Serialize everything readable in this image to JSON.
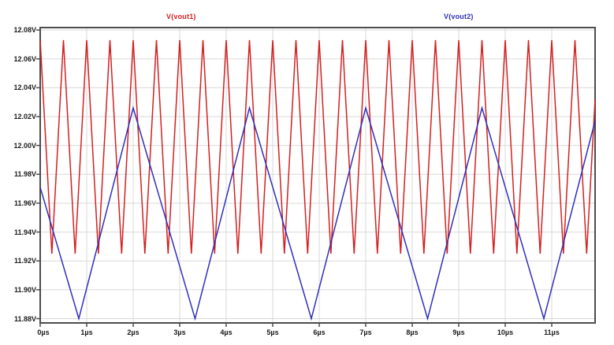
{
  "page": {
    "background": "#ffffff",
    "plot_border_color": "#4d4d4d",
    "grid_color": "#d9d9d9"
  },
  "legend": {
    "items": [
      {
        "label": "V(vout1)",
        "color": "#d42020"
      },
      {
        "label": "V(vout2)",
        "color": "#3030bb"
      }
    ]
  },
  "chart_data": {
    "type": "line",
    "title": "",
    "xlabel": "",
    "ylabel": "",
    "x_unit": "µs",
    "y_unit": "V",
    "grid": true,
    "legend_position": "top",
    "xlim": [
      0,
      11.932
    ],
    "ylim": [
      11.877,
      12.0817
    ],
    "x_ticks": {
      "values": [
        0,
        1,
        2,
        3,
        4,
        5,
        6,
        7,
        8,
        9,
        10,
        11
      ],
      "labels": [
        "0µs",
        "1µs",
        "2µs",
        "3µs",
        "4µs",
        "5µs",
        "6µs",
        "7µs",
        "8µs",
        "9µs",
        "10µs",
        "11µs"
      ]
    },
    "y_ticks": {
      "values": [
        12.08,
        12.06,
        12.04,
        12.02,
        12.0,
        11.98,
        11.96,
        11.94,
        11.92,
        11.9,
        11.88
      ],
      "labels": [
        "12.08V",
        "12.06V",
        "12.04V",
        "12.02V",
        "12.00V",
        "11.98V",
        "11.96V",
        "11.94V",
        "11.92V",
        "11.90V",
        "11.88V"
      ]
    },
    "series": [
      {
        "name": "V(vout1)",
        "color": "#d42020",
        "shape": "triangle wave, period 0.5µs, min 11.925V, max 12.073V, peaks at t = 0.5k µs",
        "points": [
          [
            0,
            12.073
          ],
          [
            0.25,
            11.925
          ],
          [
            0.5,
            12.073
          ],
          [
            0.75,
            11.925
          ],
          [
            1,
            12.073
          ],
          [
            1.25,
            11.925
          ],
          [
            1.5,
            12.073
          ],
          [
            1.75,
            11.925
          ],
          [
            2,
            12.073
          ],
          [
            2.25,
            11.925
          ],
          [
            2.5,
            12.073
          ],
          [
            2.75,
            11.925
          ],
          [
            3,
            12.073
          ],
          [
            3.25,
            11.925
          ],
          [
            3.5,
            12.073
          ],
          [
            3.75,
            11.925
          ],
          [
            4,
            12.073
          ],
          [
            4.25,
            11.925
          ],
          [
            4.5,
            12.073
          ],
          [
            4.75,
            11.925
          ],
          [
            5,
            12.073
          ],
          [
            5.25,
            11.925
          ],
          [
            5.5,
            12.073
          ],
          [
            5.75,
            11.925
          ],
          [
            6,
            12.073
          ],
          [
            6.25,
            11.925
          ],
          [
            6.5,
            12.073
          ],
          [
            6.75,
            11.925
          ],
          [
            7,
            12.073
          ],
          [
            7.25,
            11.925
          ],
          [
            7.5,
            12.073
          ],
          [
            7.75,
            11.925
          ],
          [
            8,
            12.073
          ],
          [
            8.25,
            11.925
          ],
          [
            8.5,
            12.073
          ],
          [
            8.75,
            11.925
          ],
          [
            9,
            12.073
          ],
          [
            9.25,
            11.925
          ],
          [
            9.5,
            12.073
          ],
          [
            9.75,
            11.925
          ],
          [
            10,
            12.073
          ],
          [
            10.25,
            11.925
          ],
          [
            10.5,
            12.073
          ],
          [
            10.75,
            11.925
          ],
          [
            11,
            12.073
          ],
          [
            11.25,
            11.925
          ],
          [
            11.5,
            12.073
          ],
          [
            11.75,
            11.925
          ],
          [
            11.932,
            12.032
          ]
        ]
      },
      {
        "name": "V(vout2)",
        "color": "#3030bb",
        "shape": "triangle wave, period 2.5µs, min 11.88V at t = 0.83+2.5k µs, max 12.026V at t = 2.0+2.5k µs",
        "points": [
          [
            0,
            11.971
          ],
          [
            0.83,
            11.88
          ],
          [
            2.0,
            12.026
          ],
          [
            3.33,
            11.88
          ],
          [
            4.5,
            12.026
          ],
          [
            5.83,
            11.88
          ],
          [
            7.0,
            12.026
          ],
          [
            8.33,
            11.88
          ],
          [
            9.5,
            12.026
          ],
          [
            10.83,
            11.88
          ],
          [
            11.932,
            12.017
          ]
        ]
      }
    ]
  }
}
